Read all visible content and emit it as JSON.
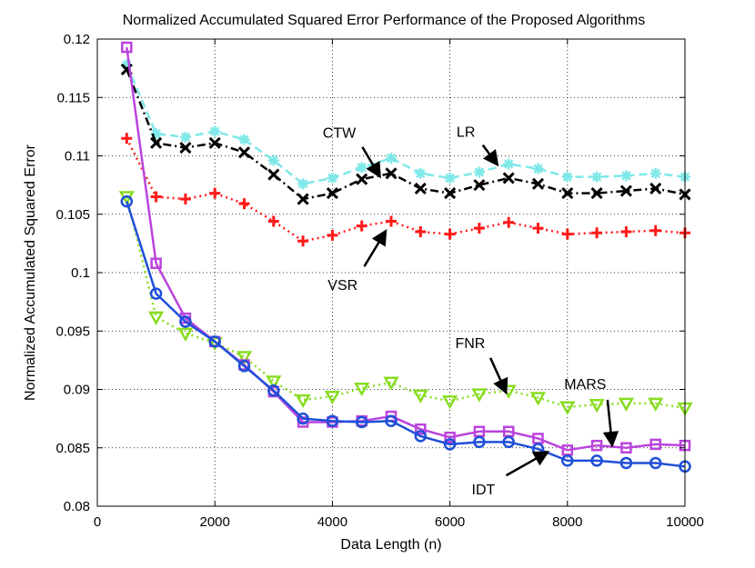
{
  "chart_data": {
    "type": "line",
    "title": "Normalized Accumulated Squared Error Performance of the Proposed Algorithms",
    "xlabel": "Data Length (n)",
    "ylabel": "Normalized Accumulated Squared Error",
    "xlim": [
      0,
      10000
    ],
    "ylim": [
      0.08,
      0.12
    ],
    "xticks": [
      0,
      2000,
      4000,
      6000,
      8000,
      10000
    ],
    "xtick_labels": [
      "0",
      "2000",
      "4000",
      "6000",
      "8000",
      "10000"
    ],
    "yticks": [
      0.08,
      0.085,
      0.09,
      0.095,
      0.1,
      0.105,
      0.11,
      0.115,
      0.12
    ],
    "ytick_labels": [
      "0.08",
      "0.085",
      "0.09",
      "0.095",
      "0.1",
      "0.105",
      "0.11",
      "0.115",
      "0.12"
    ],
    "grid": true,
    "x": [
      500,
      1000,
      1500,
      2000,
      2500,
      3000,
      3500,
      4000,
      4500,
      5000,
      5500,
      6000,
      6500,
      7000,
      7500,
      8000,
      8500,
      9000,
      9500,
      10000
    ],
    "series": [
      {
        "name": "LR",
        "color": "#7fe8e8",
        "marker": "asterisk",
        "linestyle": "dashed",
        "values": [
          0.1178,
          0.1119,
          0.1116,
          0.1121,
          0.1114,
          0.1096,
          0.1076,
          0.1081,
          0.109,
          0.1098,
          0.1085,
          0.1081,
          0.1086,
          0.1093,
          0.1089,
          0.1082,
          0.1082,
          0.1083,
          0.1085,
          0.1082
        ]
      },
      {
        "name": "CTW",
        "color": "#000000",
        "marker": "x",
        "linestyle": "dashdot",
        "values": [
          0.1174,
          0.1111,
          0.1107,
          0.1111,
          0.1103,
          0.1084,
          0.1063,
          0.1068,
          0.108,
          0.1085,
          0.1072,
          0.1068,
          0.1075,
          0.1081,
          0.1076,
          0.1068,
          0.1068,
          0.107,
          0.1072,
          0.1067
        ]
      },
      {
        "name": "VSR",
        "color": "#ff1a1a",
        "marker": "plus",
        "linestyle": "dotted",
        "values": [
          0.1115,
          0.1065,
          0.1063,
          0.1068,
          0.1059,
          0.1044,
          0.1027,
          0.1032,
          0.104,
          0.1044,
          0.1035,
          0.1033,
          0.1038,
          0.1043,
          0.1038,
          0.1033,
          0.1034,
          0.1035,
          0.1036,
          0.1034
        ]
      },
      {
        "name": "FNR",
        "color": "#88dd22",
        "marker": "triangle-down",
        "linestyle": "dotted",
        "values": [
          0.1065,
          0.0962,
          0.0948,
          0.094,
          0.0928,
          0.0907,
          0.0891,
          0.0894,
          0.0901,
          0.0906,
          0.0895,
          0.089,
          0.0896,
          0.0899,
          0.0893,
          0.0885,
          0.0887,
          0.0888,
          0.0888,
          0.0884
        ]
      },
      {
        "name": "MARS",
        "color": "#bb44dd",
        "marker": "square",
        "linestyle": "solid",
        "values": [
          0.1193,
          0.1008,
          0.0961,
          0.0941,
          0.0921,
          0.0898,
          0.0872,
          0.0872,
          0.0873,
          0.0877,
          0.0866,
          0.0859,
          0.0864,
          0.0864,
          0.0858,
          0.0848,
          0.0852,
          0.085,
          0.0853,
          0.0852
        ]
      },
      {
        "name": "IDT",
        "color": "#1f4fd8",
        "marker": "circle",
        "linestyle": "solid",
        "values": [
          0.1061,
          0.0982,
          0.0958,
          0.0941,
          0.092,
          0.0899,
          0.0875,
          0.0873,
          0.0872,
          0.0873,
          0.086,
          0.0853,
          0.0855,
          0.0855,
          0.0849,
          0.0839,
          0.0839,
          0.0837,
          0.0837,
          0.0834
        ]
      }
    ],
    "annotations": [
      {
        "text": "CTW",
        "arrow_from": [
          4400,
          0.1117
        ],
        "arrow_to": [
          4800,
          0.1083
        ]
      },
      {
        "text": "LR",
        "arrow_from": [
          6430,
          0.1118
        ],
        "arrow_to": [
          6800,
          0.1093
        ]
      },
      {
        "text": "VSR",
        "arrow_from": [
          4430,
          0.0996
        ],
        "arrow_to": [
          4900,
          0.1035
        ]
      },
      {
        "text": "FNR",
        "arrow_from": [
          6600,
          0.0937
        ],
        "arrow_to": [
          6950,
          0.0898
        ]
      },
      {
        "text": "MARS",
        "arrow_from": [
          8660,
          0.0902
        ],
        "arrow_to": [
          8760,
          0.0853
        ]
      },
      {
        "text": "IDT",
        "arrow_from": [
          6770,
          0.0821
        ],
        "arrow_to": [
          7650,
          0.0846
        ]
      }
    ]
  }
}
